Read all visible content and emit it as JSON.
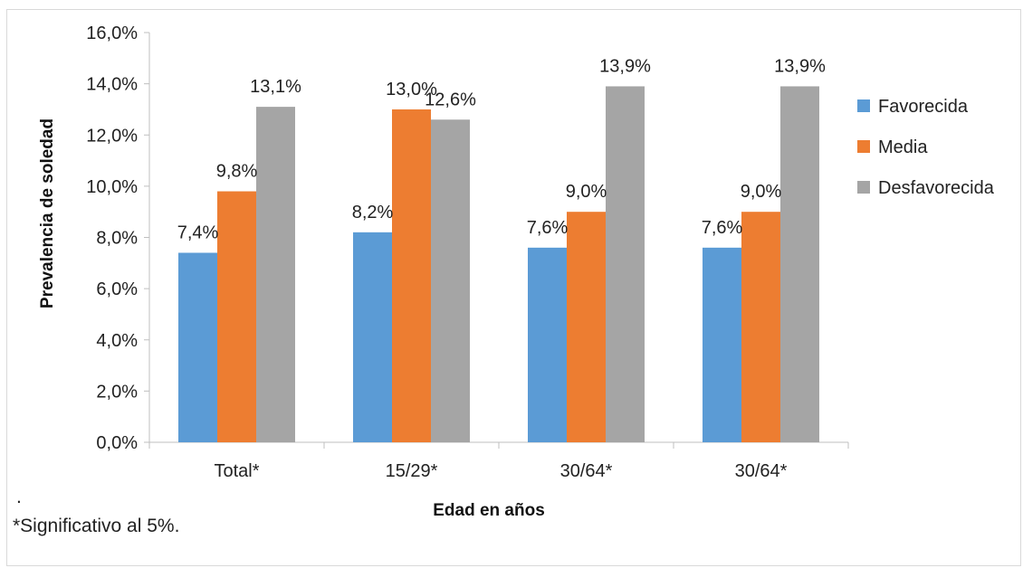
{
  "chart_data": {
    "type": "bar",
    "title": "",
    "xlabel": "Edad en años",
    "ylabel": "Prevalencia de soledad",
    "ylim": [
      0,
      16
    ],
    "ytick_labels": [
      "0,0%",
      "2,0%",
      "4,0%",
      "6,0%",
      "8,0%",
      "10,0%",
      "12,0%",
      "14,0%",
      "16,0%"
    ],
    "categories": [
      "Total*",
      "15/29*",
      "30/64*",
      "30/64*"
    ],
    "series": [
      {
        "name": "Favorecida",
        "color": "#5B9BD5",
        "values": [
          7.4,
          8.2,
          7.6,
          7.6
        ],
        "labels": [
          "7,4%",
          "8,2%",
          "7,6%",
          "7,6%"
        ]
      },
      {
        "name": "Media",
        "color": "#ED7D31",
        "values": [
          9.8,
          13.0,
          9.0,
          9.0
        ],
        "labels": [
          "9,8%",
          "13,0%",
          "9,0%",
          "9,0%"
        ]
      },
      {
        "name": "Desfavorecida",
        "color": "#A5A5A5",
        "values": [
          13.1,
          12.6,
          13.9,
          13.9
        ],
        "labels": [
          "13,1%",
          "12,6%",
          "13,9%",
          "13,9%"
        ]
      }
    ],
    "grid": false,
    "legend_position": "right"
  },
  "notes": {
    "dot": ".",
    "significance": "*Significativo al 5%."
  }
}
